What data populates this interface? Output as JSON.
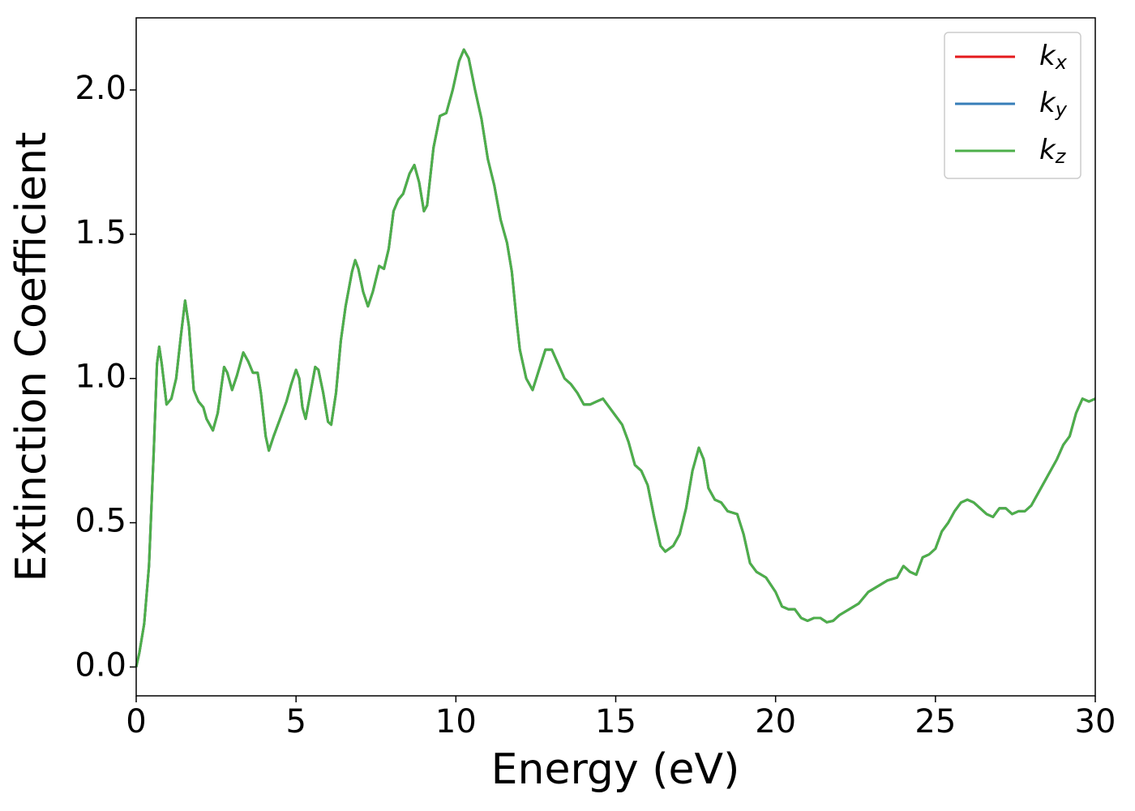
{
  "chart_data": {
    "type": "line",
    "xlabel": "Energy (eV)",
    "ylabel": "Extinction Coefficient",
    "x": [
      0,
      0.1,
      0.25,
      0.4,
      0.55,
      0.65,
      0.72,
      0.8,
      0.95,
      1.1,
      1.25,
      1.4,
      1.53,
      1.65,
      1.8,
      1.95,
      2.1,
      2.2,
      2.4,
      2.55,
      2.75,
      2.85,
      3.0,
      3.15,
      3.35,
      3.5,
      3.65,
      3.8,
      3.9,
      4.05,
      4.15,
      4.3,
      4.5,
      4.7,
      4.85,
      5.0,
      5.1,
      5.2,
      5.3,
      5.45,
      5.6,
      5.7,
      5.85,
      6.0,
      6.1,
      6.25,
      6.4,
      6.55,
      6.75,
      6.85,
      6.95,
      7.1,
      7.25,
      7.4,
      7.6,
      7.75,
      7.9,
      8.05,
      8.2,
      8.35,
      8.55,
      8.7,
      8.85,
      9.0,
      9.1,
      9.3,
      9.5,
      9.7,
      9.9,
      10.1,
      10.25,
      10.4,
      10.6,
      10.8,
      11.0,
      11.2,
      11.4,
      11.6,
      11.75,
      11.9,
      12.0,
      12.2,
      12.4,
      12.6,
      12.8,
      13.0,
      13.2,
      13.4,
      13.6,
      13.8,
      14.0,
      14.2,
      14.4,
      14.6,
      14.8,
      15.0,
      15.2,
      15.4,
      15.6,
      15.8,
      16.0,
      16.2,
      16.4,
      16.55,
      16.8,
      17.0,
      17.2,
      17.4,
      17.6,
      17.75,
      17.9,
      18.1,
      18.3,
      18.5,
      18.8,
      19.0,
      19.2,
      19.4,
      19.7,
      20.0,
      20.2,
      20.4,
      20.6,
      20.8,
      21.0,
      21.2,
      21.4,
      21.6,
      21.8,
      22.0,
      22.3,
      22.6,
      22.9,
      23.2,
      23.5,
      23.8,
      24.0,
      24.2,
      24.4,
      24.6,
      24.8,
      25.0,
      25.2,
      25.4,
      25.6,
      25.8,
      26.0,
      26.2,
      26.4,
      26.6,
      26.8,
      27.0,
      27.2,
      27.4,
      27.6,
      27.8,
      28.0,
      28.2,
      28.5,
      28.8,
      29.0,
      29.2,
      29.4,
      29.6,
      29.8,
      30.0
    ],
    "series": [
      {
        "name": "kx",
        "color": "#e41a1c",
        "values": [
          0,
          0.05,
          0.15,
          0.35,
          0.75,
          1.05,
          1.11,
          1.05,
          0.91,
          0.93,
          1.0,
          1.15,
          1.27,
          1.18,
          0.96,
          0.92,
          0.9,
          0.86,
          0.82,
          0.88,
          1.04,
          1.02,
          0.96,
          1.01,
          1.09,
          1.06,
          1.02,
          1.02,
          0.95,
          0.8,
          0.75,
          0.8,
          0.86,
          0.92,
          0.98,
          1.03,
          1.0,
          0.9,
          0.86,
          0.95,
          1.04,
          1.03,
          0.95,
          0.85,
          0.84,
          0.95,
          1.13,
          1.25,
          1.37,
          1.41,
          1.38,
          1.3,
          1.25,
          1.3,
          1.39,
          1.38,
          1.45,
          1.58,
          1.62,
          1.64,
          1.71,
          1.74,
          1.68,
          1.58,
          1.6,
          1.8,
          1.91,
          1.92,
          2.0,
          2.1,
          2.14,
          2.11,
          2.0,
          1.9,
          1.76,
          1.67,
          1.55,
          1.47,
          1.37,
          1.2,
          1.1,
          1.0,
          0.96,
          1.03,
          1.1,
          1.1,
          1.05,
          1.0,
          0.98,
          0.95,
          0.91,
          0.91,
          0.92,
          0.93,
          0.9,
          0.87,
          0.84,
          0.78,
          0.7,
          0.68,
          0.63,
          0.52,
          0.42,
          0.4,
          0.42,
          0.46,
          0.55,
          0.68,
          0.76,
          0.72,
          0.62,
          0.58,
          0.57,
          0.54,
          0.53,
          0.46,
          0.36,
          0.33,
          0.31,
          0.26,
          0.21,
          0.2,
          0.2,
          0.17,
          0.16,
          0.17,
          0.17,
          0.155,
          0.16,
          0.18,
          0.2,
          0.22,
          0.26,
          0.28,
          0.3,
          0.31,
          0.35,
          0.33,
          0.32,
          0.38,
          0.39,
          0.41,
          0.47,
          0.5,
          0.54,
          0.57,
          0.58,
          0.57,
          0.55,
          0.53,
          0.52,
          0.55,
          0.55,
          0.53,
          0.54,
          0.54,
          0.56,
          0.6,
          0.66,
          0.72,
          0.77,
          0.8,
          0.88,
          0.93,
          0.92,
          0.93
        ]
      },
      {
        "name": "ky",
        "color": "#377eb8",
        "values": [
          0,
          0.05,
          0.15,
          0.35,
          0.75,
          1.05,
          1.11,
          1.05,
          0.91,
          0.93,
          1.0,
          1.15,
          1.27,
          1.18,
          0.96,
          0.92,
          0.9,
          0.86,
          0.82,
          0.88,
          1.04,
          1.02,
          0.96,
          1.01,
          1.09,
          1.06,
          1.02,
          1.02,
          0.95,
          0.8,
          0.75,
          0.8,
          0.86,
          0.92,
          0.98,
          1.03,
          1.0,
          0.9,
          0.86,
          0.95,
          1.04,
          1.03,
          0.95,
          0.85,
          0.84,
          0.95,
          1.13,
          1.25,
          1.37,
          1.41,
          1.38,
          1.3,
          1.25,
          1.3,
          1.39,
          1.38,
          1.45,
          1.58,
          1.62,
          1.64,
          1.71,
          1.74,
          1.68,
          1.58,
          1.6,
          1.8,
          1.91,
          1.92,
          2.0,
          2.1,
          2.14,
          2.11,
          2.0,
          1.9,
          1.76,
          1.67,
          1.55,
          1.47,
          1.37,
          1.2,
          1.1,
          1.0,
          0.96,
          1.03,
          1.1,
          1.1,
          1.05,
          1.0,
          0.98,
          0.95,
          0.91,
          0.91,
          0.92,
          0.93,
          0.9,
          0.87,
          0.84,
          0.78,
          0.7,
          0.68,
          0.63,
          0.52,
          0.42,
          0.4,
          0.42,
          0.46,
          0.55,
          0.68,
          0.76,
          0.72,
          0.62,
          0.58,
          0.57,
          0.54,
          0.53,
          0.46,
          0.36,
          0.33,
          0.31,
          0.26,
          0.21,
          0.2,
          0.2,
          0.17,
          0.16,
          0.17,
          0.17,
          0.155,
          0.16,
          0.18,
          0.2,
          0.22,
          0.26,
          0.28,
          0.3,
          0.31,
          0.35,
          0.33,
          0.32,
          0.38,
          0.39,
          0.41,
          0.47,
          0.5,
          0.54,
          0.57,
          0.58,
          0.57,
          0.55,
          0.53,
          0.52,
          0.55,
          0.55,
          0.53,
          0.54,
          0.54,
          0.56,
          0.6,
          0.66,
          0.72,
          0.77,
          0.8,
          0.88,
          0.93,
          0.92,
          0.93
        ]
      },
      {
        "name": "kz",
        "color": "#4daf4a",
        "values": [
          0,
          0.05,
          0.15,
          0.35,
          0.75,
          1.05,
          1.11,
          1.05,
          0.91,
          0.93,
          1.0,
          1.15,
          1.27,
          1.18,
          0.96,
          0.92,
          0.9,
          0.86,
          0.82,
          0.88,
          1.04,
          1.02,
          0.96,
          1.01,
          1.09,
          1.06,
          1.02,
          1.02,
          0.95,
          0.8,
          0.75,
          0.8,
          0.86,
          0.92,
          0.98,
          1.03,
          1.0,
          0.9,
          0.86,
          0.95,
          1.04,
          1.03,
          0.95,
          0.85,
          0.84,
          0.95,
          1.13,
          1.25,
          1.37,
          1.41,
          1.38,
          1.3,
          1.25,
          1.3,
          1.39,
          1.38,
          1.45,
          1.58,
          1.62,
          1.64,
          1.71,
          1.74,
          1.68,
          1.58,
          1.6,
          1.8,
          1.91,
          1.92,
          2.0,
          2.1,
          2.14,
          2.11,
          2.0,
          1.9,
          1.76,
          1.67,
          1.55,
          1.47,
          1.37,
          1.2,
          1.1,
          1.0,
          0.96,
          1.03,
          1.1,
          1.1,
          1.05,
          1.0,
          0.98,
          0.95,
          0.91,
          0.91,
          0.92,
          0.93,
          0.9,
          0.87,
          0.84,
          0.78,
          0.7,
          0.68,
          0.63,
          0.52,
          0.42,
          0.4,
          0.42,
          0.46,
          0.55,
          0.68,
          0.76,
          0.72,
          0.62,
          0.58,
          0.57,
          0.54,
          0.53,
          0.46,
          0.36,
          0.33,
          0.31,
          0.26,
          0.21,
          0.2,
          0.2,
          0.17,
          0.16,
          0.17,
          0.17,
          0.155,
          0.16,
          0.18,
          0.2,
          0.22,
          0.26,
          0.28,
          0.3,
          0.31,
          0.35,
          0.33,
          0.32,
          0.38,
          0.39,
          0.41,
          0.47,
          0.5,
          0.54,
          0.57,
          0.58,
          0.57,
          0.55,
          0.53,
          0.52,
          0.55,
          0.55,
          0.53,
          0.54,
          0.54,
          0.56,
          0.6,
          0.66,
          0.72,
          0.77,
          0.8,
          0.88,
          0.93,
          0.92,
          0.93
        ]
      }
    ],
    "xlim": [
      0,
      30
    ],
    "xticks": [
      0,
      5,
      10,
      15,
      20,
      25,
      30
    ],
    "ylim": [
      -0.1,
      2.25
    ],
    "yticks": [
      {
        "value": 0,
        "label": "0.0"
      },
      0.5,
      {
        "value": 1,
        "label": "1.0"
      },
      1.5,
      {
        "value": 2,
        "label": "2.0"
      }
    ],
    "legend": "upper right",
    "grid": false
  }
}
